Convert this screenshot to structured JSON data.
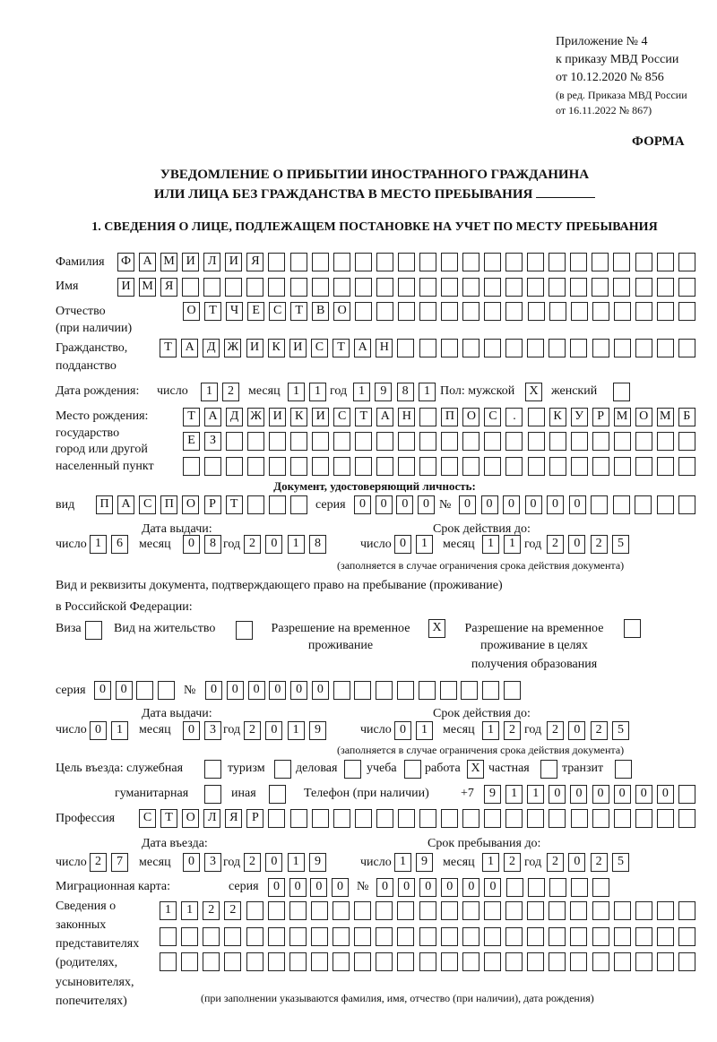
{
  "header": {
    "line1": "Приложение № 4",
    "line2": "к приказу МВД России",
    "line3": "от 10.12.2020 № 856",
    "line4": "(в ред. Приказа МВД России",
    "line5": "от 16.11.2022 № 867)",
    "form_label": "ФОРМА",
    "title1": "УВЕДОМЛЕНИЕ О ПРИБЫТИИ ИНОСТРАННОГО ГРАЖДАНИНА",
    "title2": "ИЛИ ЛИЦА БЕЗ ГРАЖДАНСТВА В МЕСТО ПРЕБЫВАНИЯ",
    "section1": "1. СВЕДЕНИЯ О ЛИЦЕ, ПОДЛЕЖАЩЕМ ПОСТАНОВКЕ НА УЧЕТ ПО МЕСТУ ПРЕБЫВАНИЯ"
  },
  "labels": {
    "surname": "Фамилия",
    "name": "Имя",
    "patronymic": "Отчество",
    "patronymic_note": "(при наличии)",
    "citizenship": "Гражданство,",
    "citizenship2": "подданство",
    "birth_date": "Дата рождения:",
    "day": "число",
    "month": "месяц",
    "year": "год",
    "sex": "Пол: мужской",
    "female": "женский",
    "birth_place": "Место рождения:",
    "state": "государство",
    "city": "город или другой",
    "settlement": "населенный пункт",
    "id_doc": "Документ, удостоверяющий личность:",
    "kind": "вид",
    "series": "серия",
    "number": "№",
    "issue_date": "Дата выдачи:",
    "valid_until": "Срок действия до:",
    "validity_note": "(заполняется в случае ограничения срока действия документа)",
    "right_doc1": "Вид и реквизиты документа, подтверждающего право на пребывание (проживание)",
    "right_doc2": "в Российской Федерации:",
    "visa": "Виза",
    "residence_permit": "Вид на жительство",
    "temp_permit1": "Разрешение на временное",
    "temp_permit2": "проживание",
    "edu_permit1": "Разрешение на временное",
    "edu_permit2": "проживание в целях",
    "edu_permit3": "получения образования",
    "purpose": "Цель въезда: служебная",
    "tourism": "туризм",
    "business": "деловая",
    "study": "учеба",
    "work": "работа",
    "private": "частная",
    "transit": "транзит",
    "humanitarian": "гуманитарная",
    "other": "иная",
    "phone": "Телефон (при наличии)",
    "phone_prefix": "+7",
    "profession": "Профессия",
    "entry_date": "Дата въезда:",
    "stay_until": "Срок пребывания до:",
    "migration_card": "Миграционная карта:",
    "reps1": "Сведения о",
    "reps2": "законных",
    "reps3": "представителях",
    "reps4": "(родителях,",
    "reps5": "усыновителях,",
    "reps6": "попечителях)",
    "reps_note": "(при заполнении указываются фамилия, имя, отчество (при наличии), дата рождения)"
  },
  "person": {
    "surname": "ФАМИЛИЯ",
    "name": "ИМЯ",
    "patronymic": "ОТЧЕСТВО",
    "citizenship": "ТАДЖИКИСТАН",
    "birth_day": "12",
    "birth_month": "11",
    "birth_year": "1981",
    "sex_male": "X",
    "sex_female": "",
    "birth_place1": "ТАДЖИКИСТАН ПОС. КУРМОМБ",
    "birth_place2": "ЕЗ",
    "birth_place3": ""
  },
  "id_document": {
    "kind": "ПАСПОРТ",
    "series": "0000",
    "number": "000000",
    "issue_day": "16",
    "issue_month": "08",
    "issue_year": "2018",
    "valid_day": "01",
    "valid_month": "11",
    "valid_year": "2025"
  },
  "right_document": {
    "visa": "",
    "residence_permit": "",
    "temp_permit": "X",
    "edu_permit": "",
    "series": "00",
    "number": "000000",
    "issue_day": "01",
    "issue_month": "03",
    "issue_year": "2019",
    "valid_day": "01",
    "valid_month": "12",
    "valid_year": "2025"
  },
  "purpose": {
    "official": "",
    "tourism": "",
    "business": "",
    "study": "",
    "work": "X",
    "private": "",
    "transit": "",
    "humanitarian": "",
    "other": ""
  },
  "phone": "911000000",
  "profession": "СТОЛЯР",
  "entry": {
    "day": "27",
    "month": "03",
    "year": "2019",
    "stay_day": "19",
    "stay_month": "12",
    "stay_year": "2025"
  },
  "migration_card": {
    "series": "0000",
    "number": "000000"
  },
  "representatives": {
    "row1": "1122",
    "row2": "",
    "row3": ""
  }
}
